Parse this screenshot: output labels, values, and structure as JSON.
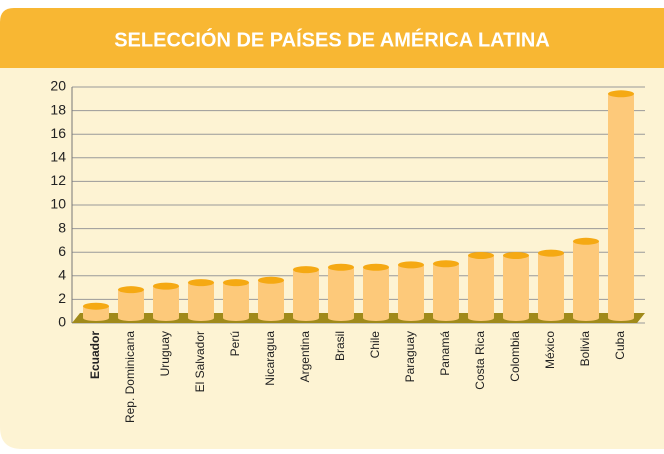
{
  "chart_data": {
    "type": "bar",
    "title": "SELECCIÓN DE PAÍSES DE AMÉRICA LATINA",
    "categories": [
      "Ecuador",
      "Rep. Dominicana",
      "Uruguay",
      "El Salvador",
      "Perú",
      "Nicaragua",
      "Argentina",
      "Brasil",
      "Chile",
      "Paraguay",
      "Panamá",
      "Costa Rica",
      "Colombia",
      "México",
      "Bolivia",
      "Cuba"
    ],
    "values": [
      1.0,
      2.4,
      2.7,
      3.0,
      3.0,
      3.2,
      4.1,
      4.3,
      4.3,
      4.5,
      4.6,
      5.3,
      5.3,
      5.5,
      6.5,
      19.0
    ],
    "color": "#fdc97a",
    "top_color": "#f5a913",
    "floor_color": "#a08a1a",
    "highlight": 0,
    "ylim": [
      0,
      20
    ],
    "yticks": [
      0,
      2,
      4,
      6,
      8,
      10,
      12,
      14,
      16,
      18,
      20
    ],
    "grid": true
  }
}
